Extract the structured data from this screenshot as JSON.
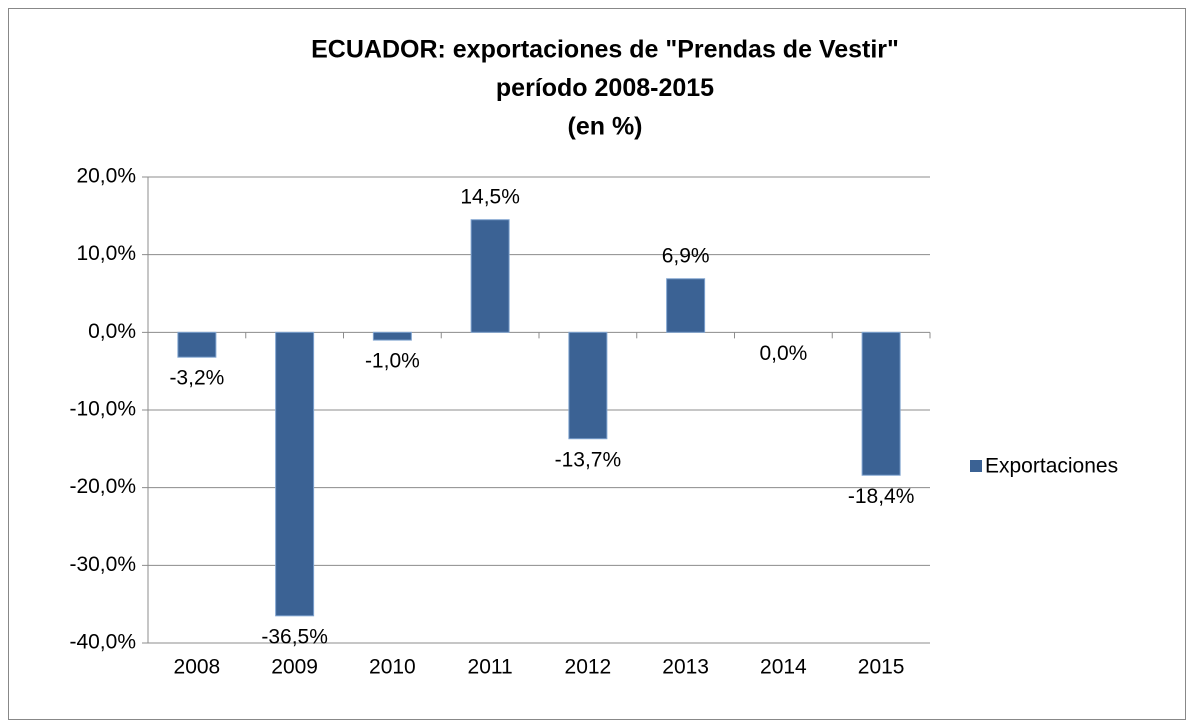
{
  "chart_data": {
    "type": "bar",
    "title": [
      "ECUADOR: exportaciones de \"Prendas de Vestir\"",
      "período 2008-2015",
      "(en %)"
    ],
    "categories": [
      "2008",
      "2009",
      "2010",
      "2011",
      "2012",
      "2013",
      "2014",
      "2015"
    ],
    "series": [
      {
        "name": "Exportaciones",
        "color": "#3b6294",
        "values": [
          -3.2,
          -36.5,
          -1.0,
          14.5,
          -13.7,
          6.9,
          0.0,
          -18.4
        ],
        "value_labels": [
          "-3,2%",
          "-36,5%",
          "-1,0%",
          "14,5%",
          "-13,7%",
          "6,9%",
          "0,0%",
          "-18,4%"
        ]
      }
    ],
    "ylim": [
      -40,
      20
    ],
    "yticks": [
      {
        "value": -40,
        "label": "-40,0%"
      },
      {
        "value": -30,
        "label": "-30,0%"
      },
      {
        "value": -20,
        "label": "-20,0%"
      },
      {
        "value": -10,
        "label": "-10,0%"
      },
      {
        "value": 0,
        "label": "0,0%"
      },
      {
        "value": 10,
        "label": "10,0%"
      },
      {
        "value": 20,
        "label": "20,0%"
      }
    ],
    "grid": true,
    "legend": "right"
  }
}
